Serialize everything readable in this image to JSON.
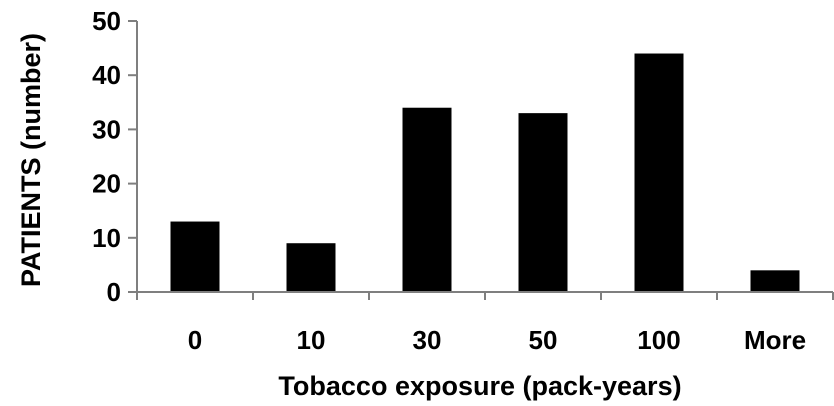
{
  "chart_data": {
    "type": "bar",
    "title": "",
    "xlabel": "Tobacco exposure (pack-years)",
    "ylabel": "PATIENTS (number)",
    "categories": [
      "0",
      "10",
      "30",
      "50",
      "100",
      "More"
    ],
    "values": [
      13,
      9,
      34,
      33,
      44,
      4
    ],
    "ylim": [
      0,
      50
    ],
    "yticks": [
      0,
      10,
      20,
      30,
      40,
      50
    ],
    "grid": false,
    "legend": "none",
    "colors": {
      "bar": "#000000",
      "axis": "#7f7f7f",
      "text": "#000000"
    }
  }
}
